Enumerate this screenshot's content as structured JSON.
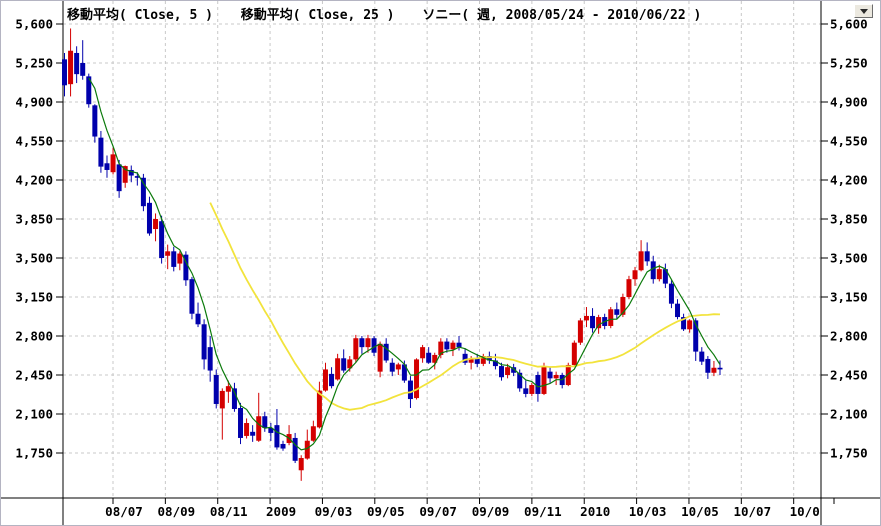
{
  "header": {
    "legend_ma5": "移動平均( Close, 5 )",
    "legend_ma25": "移動平均( Close, 25 )",
    "legend_symbol": "ソニー( 週, 2008/05/24 - 2010/06/22 )"
  },
  "controls": {
    "dropdown_icon": "chevron-down"
  },
  "chart_data": {
    "type": "candlestick",
    "title": "ソニー( 週, 2008/05/24 - 2010/06/22 )",
    "symbol": "ソニー",
    "interval": "週",
    "date_range": "2008/05/24 - 2010/06/22",
    "legend": [
      "移動平均( Close, 5 )",
      "移動平均( Close, 25 )",
      "ソニー( 週, 2008/05/24 - 2010/06/22 )"
    ],
    "grid": true,
    "y_axis_ticks": [
      5600,
      5250,
      4900,
      4550,
      4200,
      3850,
      3500,
      3150,
      2800,
      2450,
      2100,
      1750
    ],
    "ylim": [
      1350,
      5800
    ],
    "x_axis_labels": [
      "08/07",
      "08/09",
      "08/11",
      "2009",
      "09/03",
      "09/05",
      "09/07",
      "09/09",
      "09/11",
      "2010",
      "10/03",
      "10/05",
      "10/07",
      "10/0"
    ],
    "overlays": [
      {
        "name": "移動平均( Close, 5 )",
        "type": "sma",
        "period": 5,
        "source": "close"
      },
      {
        "name": "移動平均( Close, 25 )",
        "type": "sma",
        "period": 25,
        "source": "close"
      }
    ],
    "colors": {
      "up": "#d40000",
      "down": "#0000ac",
      "ma5": "#0b7a0b",
      "ma25": "#f2e33c",
      "grid": "#c8c8c8",
      "axis": "#000000",
      "text": "#000000"
    },
    "candles": [
      [
        5283,
        5340,
        4950,
        5050
      ],
      [
        5060,
        5560,
        4950,
        5360
      ],
      [
        5340,
        5400,
        5070,
        5150
      ],
      [
        5250,
        5455,
        5100,
        5135
      ],
      [
        5130,
        5155,
        4849,
        4880
      ],
      [
        4870,
        4880,
        4535,
        4590
      ],
      [
        4580,
        4640,
        4265,
        4320
      ],
      [
        4350,
        4420,
        4220,
        4290
      ],
      [
        4270,
        4490,
        4250,
        4430
      ],
      [
        4340,
        4380,
        4040,
        4100
      ],
      [
        4175,
        4330,
        4130,
        4325
      ],
      [
        4290,
        4330,
        4180,
        4240
      ],
      [
        4235,
        4270,
        4150,
        4220
      ],
      [
        4220,
        4255,
        3920,
        3965
      ],
      [
        3995,
        4050,
        3700,
        3720
      ],
      [
        3760,
        3900,
        3650,
        3850
      ],
      [
        3830,
        3880,
        3450,
        3500
      ],
      [
        3520,
        3620,
        3400,
        3560
      ],
      [
        3560,
        3600,
        3380,
        3420
      ],
      [
        3450,
        3560,
        3390,
        3540
      ],
      [
        3530,
        3560,
        3250,
        3300
      ],
      [
        3310,
        3330,
        2950,
        3000
      ],
      [
        3000,
        3100,
        2880,
        2905
      ],
      [
        2905,
        2950,
        2500,
        2590
      ],
      [
        2700,
        2800,
        2390,
        2490
      ],
      [
        2450,
        2500,
        2150,
        2190
      ],
      [
        2150,
        2330,
        1870,
        2307
      ],
      [
        2300,
        2400,
        2200,
        2350
      ],
      [
        2330,
        2380,
        2120,
        2145
      ],
      [
        2154,
        2200,
        1830,
        1885
      ],
      [
        1903,
        2060,
        1880,
        2019
      ],
      [
        1940,
        2000,
        1850,
        1905
      ],
      [
        1860,
        2290,
        1850,
        2080
      ],
      [
        2080,
        2120,
        1940,
        1975
      ],
      [
        1975,
        2020,
        1858,
        1930
      ],
      [
        2000,
        2145,
        1780,
        1800
      ],
      [
        1831,
        1860,
        1770,
        1790
      ],
      [
        1840,
        2000,
        1820,
        1920
      ],
      [
        1885,
        1930,
        1660,
        1680
      ],
      [
        1595,
        1730,
        1500,
        1705
      ],
      [
        1700,
        1960,
        1690,
        1860
      ],
      [
        1860,
        2040,
        1850,
        1990
      ],
      [
        1980,
        2390,
        1970,
        2310
      ],
      [
        2310,
        2560,
        2300,
        2500
      ],
      [
        2460,
        2520,
        2330,
        2350
      ],
      [
        2410,
        2640,
        2400,
        2600
      ],
      [
        2600,
        2680,
        2470,
        2490
      ],
      [
        2510,
        2620,
        2480,
        2590
      ],
      [
        2590,
        2810,
        2560,
        2780
      ],
      [
        2780,
        2800,
        2640,
        2700
      ],
      [
        2700,
        2810,
        2650,
        2780
      ],
      [
        2780,
        2800,
        2620,
        2650
      ],
      [
        2480,
        2750,
        2430,
        2730
      ],
      [
        2730,
        2780,
        2560,
        2580
      ],
      [
        2560,
        2600,
        2440,
        2480
      ],
      [
        2500,
        2560,
        2450,
        2545
      ],
      [
        2545,
        2580,
        2380,
        2400
      ],
      [
        2400,
        2440,
        2154,
        2234
      ],
      [
        2243,
        2600,
        2230,
        2590
      ],
      [
        2600,
        2720,
        2560,
        2700
      ],
      [
        2650,
        2700,
        2550,
        2560
      ],
      [
        2560,
        2650,
        2500,
        2630
      ],
      [
        2630,
        2780,
        2600,
        2750
      ],
      [
        2750,
        2780,
        2650,
        2680
      ],
      [
        2680,
        2760,
        2620,
        2740
      ],
      [
        2740,
        2800,
        2670,
        2700
      ],
      [
        2640,
        2690,
        2540,
        2560
      ],
      [
        2560,
        2620,
        2500,
        2600
      ],
      [
        2600,
        2640,
        2520,
        2550
      ],
      [
        2550,
        2640,
        2530,
        2620
      ],
      [
        2620,
        2660,
        2550,
        2580
      ],
      [
        2580,
        2640,
        2500,
        2530
      ],
      [
        2530,
        2560,
        2400,
        2430
      ],
      [
        2450,
        2550,
        2420,
        2520
      ],
      [
        2520,
        2550,
        2440,
        2470
      ],
      [
        2470,
        2500,
        2300,
        2330
      ],
      [
        2330,
        2400,
        2250,
        2280
      ],
      [
        2280,
        2380,
        2260,
        2360
      ],
      [
        2450,
        2480,
        2210,
        2280
      ],
      [
        2280,
        2560,
        2270,
        2530
      ],
      [
        2480,
        2520,
        2380,
        2420
      ],
      [
        2420,
        2480,
        2360,
        2450
      ],
      [
        2450,
        2470,
        2330,
        2360
      ],
      [
        2360,
        2560,
        2350,
        2540
      ],
      [
        2540,
        2760,
        2530,
        2740
      ],
      [
        2740,
        2960,
        2720,
        2940
      ],
      [
        2940,
        3060,
        2880,
        2980
      ],
      [
        2980,
        3050,
        2830,
        2870
      ],
      [
        2870,
        2990,
        2820,
        2970
      ],
      [
        2970,
        3000,
        2860,
        2890
      ],
      [
        2890,
        3060,
        2870,
        3040
      ],
      [
        3040,
        3100,
        2950,
        2990
      ],
      [
        2990,
        3180,
        2970,
        3150
      ],
      [
        3150,
        3340,
        3130,
        3310
      ],
      [
        3310,
        3420,
        3250,
        3390
      ],
      [
        3390,
        3660,
        3380,
        3560
      ],
      [
        3560,
        3640,
        3430,
        3470
      ],
      [
        3470,
        3520,
        3270,
        3310
      ],
      [
        3310,
        3440,
        3290,
        3400
      ],
      [
        3400,
        3450,
        3230,
        3270
      ],
      [
        3270,
        3300,
        3050,
        3090
      ],
      [
        3090,
        3130,
        2950,
        2970
      ],
      [
        2970,
        3000,
        2845,
        2860
      ],
      [
        2860,
        2950,
        2830,
        2940
      ],
      [
        2940,
        2960,
        2576,
        2660
      ],
      [
        2660,
        2700,
        2540,
        2570
      ],
      [
        2594,
        2620,
        2415,
        2470
      ],
      [
        2470,
        2576,
        2440,
        2515
      ],
      [
        2515,
        2580,
        2450,
        2500
      ]
    ]
  }
}
